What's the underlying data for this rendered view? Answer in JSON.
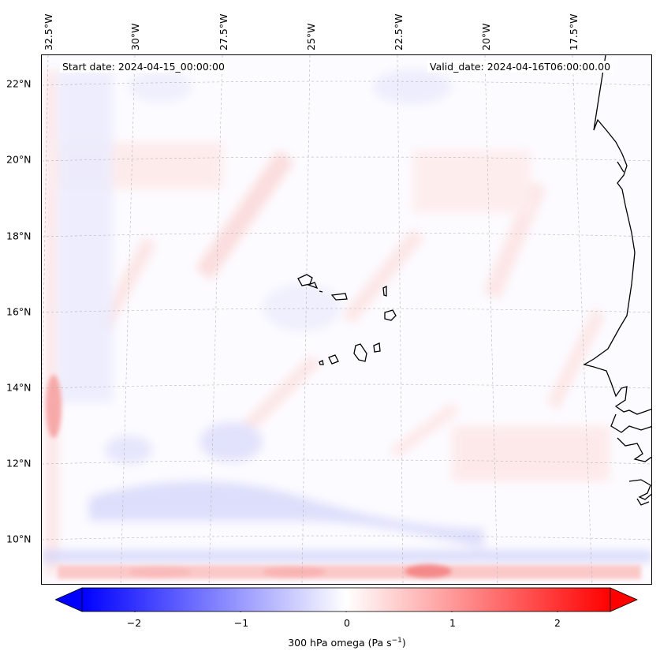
{
  "map": {
    "start_date": "Start date: 2024-04-15_00:00:00",
    "valid_date": "Valid_date: 2024-04-16T06:00:00.00",
    "lon_labels": [
      "32.5°W",
      "30°W",
      "27.5°W",
      "25°W",
      "22.5°W",
      "20°W",
      "17.5°W"
    ],
    "lat_labels": [
      "22°N",
      "20°N",
      "18°N",
      "16°N",
      "14°N",
      "12°N",
      "10°N"
    ],
    "gridlines": true,
    "extent": {
      "lon": [
        -32.8,
        -15.4
      ],
      "lat": [
        8.9,
        22.8
      ]
    }
  },
  "colorbar": {
    "label": "300 hPa omega (Pa s",
    "label_sup": "−1",
    "label_close": ")",
    "ticks": [
      "−2",
      "−1",
      "0",
      "1",
      "2"
    ],
    "tick_values": [
      -2,
      -1,
      0,
      1,
      2
    ],
    "range": [
      -2.5,
      2.5
    ],
    "extend": "both",
    "colormap": "bwr",
    "min_color": "#0000ff",
    "mid_color": "#ffffff",
    "max_color": "#ff0000"
  }
}
